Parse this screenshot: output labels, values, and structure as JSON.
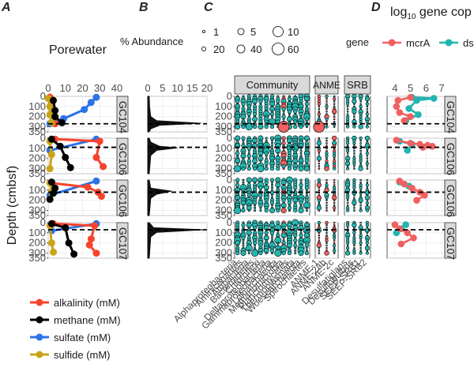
{
  "panel_labels": [
    "A",
    "B",
    "C",
    "D"
  ],
  "colors": {
    "alkalinity": "#f8432d",
    "methane": "#000000",
    "sulfate": "#2d72e6",
    "sulfide": "#c8a416",
    "community": "#23b7b1",
    "mcrA": "#f06060",
    "dsr": "#20b5b0",
    "strip_fill": "#d9d9d9",
    "grid": "#ebebeb"
  },
  "chart_data": [
    {
      "panel": "A",
      "type": "line",
      "title": "Porewater",
      "ylabel": "Depth (cmbsf)",
      "x_ticks": [
        "0",
        "10",
        "20",
        "30",
        "40"
      ],
      "xlim": [
        0,
        40
      ],
      "y_ticks": [
        "0",
        "100",
        "200",
        "300",
        "350"
      ],
      "ylim": [
        0,
        350
      ],
      "legend": [
        "alkalinity (mM)",
        "methane (mM)",
        "sulfate (mM)",
        "sulfide (mM)"
      ],
      "facets": [
        "GC104",
        "GC106",
        "GC106",
        "GC107"
      ],
      "sulfate_methane_transition_depths": [
        270,
        90,
        120,
        70
      ],
      "series": [
        {
          "name": "alkalinity (mM)",
          "facets": [
            [
              [
                1,
                8
              ],
              [
                2,
                80
              ],
              [
                3,
                170
              ],
              [
                4,
                270
              ]
            ],
            [
              [
                4,
                10
              ],
              [
                30,
                30
              ],
              [
                28,
                190
              ],
              [
                32,
                280
              ]
            ],
            [
              [
                2,
                30
              ],
              [
                23,
                70
              ],
              [
                29,
                120
              ],
              [
                31,
                160
              ]
            ],
            [
              [
                3,
                10
              ],
              [
                27,
                30
              ],
              [
                25,
                160
              ],
              [
                24,
                220
              ],
              [
                28,
                300
              ]
            ]
          ]
        },
        {
          "name": "methane (mM)",
          "facets": [
            [
              [
                3,
                40
              ],
              [
                4,
                140
              ],
              [
                4,
                200
              ],
              [
                8,
                260
              ]
            ],
            [
              [
                2,
                10
              ],
              [
                7,
                80
              ],
              [
                10,
                190
              ],
              [
                13,
                290
              ]
            ],
            [
              [
                2,
                20
              ],
              [
                4,
                80
              ],
              [
                3,
                130
              ],
              [
                1,
                190
              ]
            ],
            [
              [
                2,
                10
              ],
              [
                10,
                50
              ],
              [
                12,
                200
              ],
              [
                15,
                310
              ]
            ]
          ]
        },
        {
          "name": "sulfate (mM)",
          "facets": [
            [
              [
                28,
                10
              ],
              [
                25,
                60
              ],
              [
                21,
                130
              ],
              [
                9,
                220
              ],
              [
                1,
                270
              ]
            ],
            [
              [
                28,
                10
              ],
              [
                1,
                120
              ]
            ],
            [
              [
                28,
                10
              ],
              [
                1,
                150
              ]
            ],
            [
              [
                28,
                10
              ],
              [
                2,
                80
              ]
            ]
          ]
        },
        {
          "name": "sulfide (mM)",
          "facets": [
            [
              [
                0,
                20
              ],
              [
                1,
                100
              ],
              [
                1,
                180
              ],
              [
                2,
                260
              ]
            ],
            [
              [
                1,
                30
              ],
              [
                2,
                160
              ],
              [
                1,
                300
              ]
            ],
            [
              [
                1,
                30
              ],
              [
                2,
                110
              ],
              [
                1,
                190
              ]
            ],
            [
              [
                1,
                30
              ],
              [
                2,
                200
              ],
              [
                3,
                290
              ]
            ]
          ]
        }
      ]
    },
    {
      "panel": "B",
      "type": "area",
      "title": "% Abundance",
      "x_ticks": [
        "0",
        "5",
        "10",
        "15",
        "20"
      ],
      "xlim": [
        0,
        20
      ],
      "y_ticks": [
        "0",
        "100",
        "200",
        "300",
        "350"
      ],
      "ylim": [
        0,
        350
      ],
      "facets": [
        "GC104",
        "GC106",
        "GC106",
        "GC107"
      ],
      "sulfate_methane_transition_depths": [
        270,
        90,
        120,
        70
      ],
      "profiles": [
        [
          [
            0.5,
            0
          ],
          [
            0.6,
            100
          ],
          [
            1,
            200
          ],
          [
            3,
            240
          ],
          [
            18,
            265
          ],
          [
            4,
            285
          ],
          [
            1,
            320
          ],
          [
            0.5,
            350
          ]
        ],
        [
          [
            0.5,
            0
          ],
          [
            1,
            40
          ],
          [
            4,
            80
          ],
          [
            10,
            95
          ],
          [
            3,
            120
          ],
          [
            1,
            170
          ],
          [
            0.5,
            350
          ]
        ],
        [
          [
            0.5,
            0
          ],
          [
            1,
            80
          ],
          [
            8,
            110
          ],
          [
            3,
            140
          ],
          [
            1,
            180
          ],
          [
            0.5,
            350
          ]
        ],
        [
          [
            0.5,
            0
          ],
          [
            2,
            50
          ],
          [
            19,
            70
          ],
          [
            3,
            95
          ],
          [
            1,
            140
          ],
          [
            0.5,
            350
          ]
        ]
      ]
    },
    {
      "panel": "C",
      "type": "scatter",
      "size_legend_title": "% Abundance",
      "size_legend_values": [
        "1",
        "5",
        "10",
        "20",
        "40",
        "60"
      ],
      "groups": [
        "Community",
        "ANME",
        "SRB"
      ],
      "y_ticks": [
        "0",
        "100",
        "200",
        "300",
        "350"
      ],
      "ylim": [
        0,
        350
      ],
      "facets": [
        "GC104",
        "GC106",
        "GC106",
        "GC107"
      ],
      "sulfate_methane_transition_depths": [
        270,
        90,
        120,
        70
      ],
      "taxa": [
        "Alphaproteobacteria",
        "Aminicenantes",
        "Atribacteria",
        "Bacteroidetes",
        "Chloroflexi",
        "Deltaproteobacteria",
        "Gammaproteobacteria",
        "Lokiarchaeota",
        "Methanomicrobia",
        "Planctomycetes",
        "Thermoplasmata",
        "Woesearchaeota",
        "Spirochaetes",
        "ANME-1",
        "ANME-2ab",
        "ANME-2c",
        "Desulfatiglans",
        "Desulfobulbus",
        "SEEP-SRB1",
        "SEEP-SRB2"
      ],
      "highlighted_points": [
        {
          "taxon": "Methanomicrobia",
          "facet": "GC104",
          "depth": 300,
          "abundance": 40
        },
        {
          "taxon": "ANME-1",
          "facet": "GC104",
          "depth": 300,
          "abundance": 40
        }
      ]
    },
    {
      "panel": "D",
      "type": "line",
      "title": "log10 gene cop",
      "legend_title": "gene",
      "legend": [
        "mcrA",
        "dsr"
      ],
      "x_ticks": [
        "4",
        "5",
        "6",
        "7"
      ],
      "xlim": [
        3.5,
        7.2
      ],
      "y_ticks": [
        "0",
        "100",
        "200",
        "300",
        "350"
      ],
      "ylim": [
        0,
        350
      ],
      "facets": [
        "GC104",
        "GC106",
        "GC106",
        "GC107"
      ],
      "sulfate_methane_transition_depths": [
        270,
        90,
        120,
        70
      ],
      "series": [
        {
          "name": "mcrA",
          "facets": [
            [
              [
                5.0,
                10
              ],
              [
                4.2,
                40
              ],
              [
                4.1,
                100
              ],
              [
                4.3,
                160
              ],
              [
                5.0,
                200
              ],
              [
                4.6,
                240
              ]
            ],
            [
              [
                4.1,
                20
              ],
              [
                5.0,
                50
              ],
              [
                5.6,
                60
              ],
              [
                6.1,
                70
              ],
              [
                6.4,
                80
              ],
              [
                5.8,
                90
              ]
            ],
            [
              [
                4.3,
                10
              ],
              [
                4.6,
                40
              ],
              [
                5.1,
                80
              ],
              [
                5.6,
                120
              ],
              [
                5.9,
                150
              ],
              [
                5.4,
                200
              ]
            ],
            [
              [
                4.0,
                20
              ],
              [
                4.3,
                60
              ],
              [
                4.8,
                100
              ],
              [
                5.2,
                150
              ],
              [
                4.4,
                210
              ]
            ]
          ]
        },
        {
          "name": "dsr",
          "facets": [
            [
              [
                5.1,
                10
              ],
              [
                6.5,
                20
              ],
              [
                5.4,
                40
              ],
              [
                4.9,
                120
              ],
              [
                5.5,
                180
              ],
              [
                4.7,
                240
              ]
            ],
            [
              [
                4.3,
                30
              ],
              [
                5.1,
                60
              ],
              [
                4.8,
                120
              ]
            ],
            [
              [
                4.3,
                20
              ],
              [
                4.9,
                60
              ]
            ],
            [
              [
                4.7,
                20
              ],
              [
                4.4,
                60
              ],
              [
                4.1,
                100
              ]
            ]
          ]
        }
      ]
    }
  ]
}
